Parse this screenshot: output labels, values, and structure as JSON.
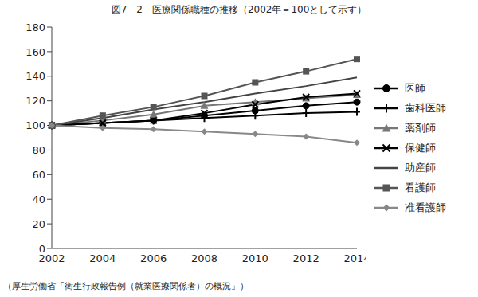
{
  "chart_data": {
    "type": "line",
    "title": "図7－2　医療関係職種の推移（2002年＝100として示す）",
    "source": "（厚生労働省「衛生行政報告例（就業医療関係者）の概況」）",
    "categories": [
      "2002",
      "2004",
      "2006",
      "2008",
      "2010",
      "2012",
      "2014"
    ],
    "ylim": [
      0,
      180
    ],
    "yticks": [
      0,
      20,
      40,
      60,
      80,
      100,
      120,
      140,
      160,
      180
    ],
    "grid": false,
    "legend": "right",
    "series": [
      {
        "name": "医師",
        "color": "#000000",
        "marker": "circle",
        "values": [
          100,
          102,
          104,
          108,
          112,
          116,
          119
        ]
      },
      {
        "name": "歯科医師",
        "color": "#000000",
        "marker": "plus",
        "values": [
          100,
          102,
          104,
          106,
          108,
          110,
          111
        ]
      },
      {
        "name": "薬剤師",
        "color": "#777777",
        "marker": "triangle",
        "values": [
          100,
          104,
          109,
          116,
          119,
          122,
          125
        ]
      },
      {
        "name": "保健師",
        "color": "#000000",
        "marker": "x",
        "values": [
          100,
          102,
          104,
          110,
          117,
          123,
          126
        ]
      },
      {
        "name": "助産師",
        "color": "#444444",
        "marker": "none",
        "values": [
          100,
          106,
          113,
          119,
          126,
          132,
          139
        ]
      },
      {
        "name": "看護師",
        "color": "#555555",
        "marker": "square",
        "values": [
          100,
          108,
          115,
          124,
          135,
          144,
          154
        ]
      },
      {
        "name": "准看護師",
        "color": "#888888",
        "marker": "diamond",
        "values": [
          100,
          98,
          97,
          95,
          93,
          91,
          86
        ]
      }
    ]
  }
}
